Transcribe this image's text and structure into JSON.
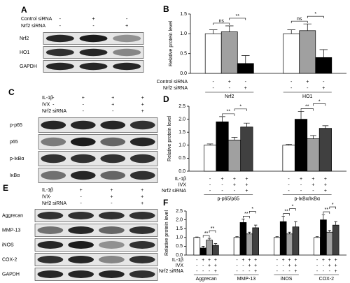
{
  "blots": [
    {
      "label": "A",
      "conditions": [
        {
          "name": "Control siRNA",
          "signs": [
            "-",
            "+",
            "-"
          ]
        },
        {
          "name": "Nrf2 siRNA",
          "signs": [
            "-",
            "-",
            "+"
          ]
        }
      ],
      "bands": [
        "Nrf2",
        "HO1",
        "GAPDH"
      ]
    },
    {
      "label": "C",
      "conditions": [
        {
          "name": "IL-1β",
          "signs": [
            "-",
            "+",
            "+",
            "+"
          ]
        },
        {
          "name": "IVX",
          "signs": [
            "-",
            "-",
            "+",
            "+"
          ]
        },
        {
          "name": "Nrf2 siRNA",
          "signs": [
            "-",
            "-",
            "-",
            "+"
          ]
        }
      ],
      "bands": [
        "p-p65",
        "p65",
        "p-IκBα",
        "IκBα"
      ]
    },
    {
      "label": "E",
      "conditions": [
        {
          "name": "IL-1β",
          "signs": [
            "-",
            "+",
            "+",
            "+"
          ]
        },
        {
          "name": "IVX",
          "signs": [
            "-",
            "-",
            "+",
            "+"
          ]
        },
        {
          "name": "Nrf2 siRNA",
          "signs": [
            "-",
            "-",
            "-",
            "+"
          ]
        }
      ],
      "bands": [
        "Aggrecan",
        "MMP-13",
        "iNOS",
        "COX-2",
        "GAPDH"
      ]
    }
  ],
  "chart_data": [
    {
      "type": "bar",
      "label": "B",
      "y_label": "Relative protein level",
      "categories": [
        "Nrf2",
        "HO1"
      ],
      "series": [
        {
          "color": "#ffffff",
          "values": [
            1.0,
            1.0
          ],
          "errors": [
            0.1,
            0.1
          ]
        },
        {
          "color": "#a0a0a0",
          "values": [
            1.05,
            1.08
          ],
          "errors": [
            0.15,
            0.17
          ]
        },
        {
          "color": "#000000",
          "values": [
            0.25,
            0.4
          ],
          "errors": [
            0.2,
            0.2
          ]
        }
      ],
      "conditions": [
        {
          "name": "Control siRNA",
          "signs": [
            "-",
            "+",
            "-"
          ]
        },
        {
          "name": "Nrf2 siRNA",
          "signs": [
            "-",
            "-",
            "+"
          ]
        }
      ],
      "significance": [
        [
          "ns",
          "**"
        ],
        [
          "ns",
          "*"
        ]
      ],
      "ylim": [
        0,
        1.5
      ],
      "yticks": [
        {
          "value": 0,
          "label": "0.0"
        },
        {
          "value": 0.5,
          "label": "0.5"
        },
        {
          "value": 1,
          "label": "1.0"
        },
        {
          "value": 1.5,
          "label": "1.5"
        }
      ]
    },
    {
      "type": "bar",
      "label": "D",
      "y_label": "Relative protein level",
      "categories": [
        "p-p65/p65",
        "p-IκBα/IκBα"
      ],
      "series": [
        {
          "color": "#ffffff",
          "values": [
            1.0,
            1.0
          ],
          "errors": [
            0.05,
            0.03
          ]
        },
        {
          "color": "#000000",
          "values": [
            1.9,
            2.0
          ],
          "errors": [
            0.2,
            0.3
          ]
        },
        {
          "color": "#a0a0a0",
          "values": [
            1.2,
            1.25
          ],
          "errors": [
            0.1,
            0.12
          ]
        },
        {
          "color": "#404040",
          "values": [
            1.7,
            1.65
          ],
          "errors": [
            0.15,
            0.1
          ]
        }
      ],
      "conditions": [
        {
          "name": "IL-1β",
          "signs": [
            "-",
            "+",
            "+",
            "+"
          ]
        },
        {
          "name": "IVX",
          "signs": [
            "-",
            "-",
            "+",
            "+"
          ]
        },
        {
          "name": "Nrf2 siRNA",
          "signs": [
            "-",
            "-",
            "-",
            "+"
          ]
        }
      ],
      "significance": [
        [
          "**",
          "*"
        ],
        [
          "**",
          "*"
        ]
      ],
      "ylim": [
        0,
        2.5
      ],
      "yticks": [
        {
          "value": 0,
          "label": "0.0"
        },
        {
          "value": 0.5,
          "label": "0.5"
        },
        {
          "value": 1,
          "label": "1.0"
        },
        {
          "value": 1.5,
          "label": "1.5"
        },
        {
          "value": 2,
          "label": "2.0"
        },
        {
          "value": 2.5,
          "label": "2.5"
        }
      ]
    },
    {
      "type": "bar",
      "label": "F",
      "y_label": "Relative protein level",
      "categories": [
        "Aggrecan",
        "MMP-13",
        "iNOS",
        "COX-2"
      ],
      "series": [
        {
          "color": "#ffffff",
          "values": [
            1.0,
            1.0,
            1.0,
            1.0
          ],
          "errors": [
            0.03,
            0.05,
            0.05,
            0.05
          ]
        },
        {
          "color": "#000000",
          "values": [
            0.4,
            1.85,
            1.9,
            2.0
          ],
          "errors": [
            0.1,
            0.2,
            0.3,
            0.3
          ]
        },
        {
          "color": "#a0a0a0",
          "values": [
            0.85,
            1.2,
            1.2,
            1.3
          ],
          "errors": [
            0.1,
            0.1,
            0.1,
            0.1
          ]
        },
        {
          "color": "#404040",
          "values": [
            0.55,
            1.55,
            1.6,
            1.7
          ],
          "errors": [
            0.1,
            0.15,
            0.3,
            0.2
          ]
        }
      ],
      "conditions": [
        {
          "name": "IL-1β",
          "signs": [
            "-",
            "+",
            "+",
            "+"
          ]
        },
        {
          "name": "IVX",
          "signs": [
            "-",
            "-",
            "+",
            "+"
          ]
        },
        {
          "name": "Nrf2 siRNA",
          "signs": [
            "-",
            "-",
            "-",
            "+"
          ]
        }
      ],
      "significance": [
        [
          "**",
          "**"
        ],
        [
          "**",
          "*"
        ],
        [
          "**",
          "*"
        ],
        [
          "**",
          "*"
        ]
      ],
      "ylim": [
        0,
        2.5
      ],
      "yticks": [
        {
          "value": 0,
          "label": "0.0"
        },
        {
          "value": 0.5,
          "label": "0.5"
        },
        {
          "value": 1,
          "label": "1.0"
        },
        {
          "value": 1.5,
          "label": "1.5"
        },
        {
          "value": 2,
          "label": "2.0"
        },
        {
          "value": 2.5,
          "label": "2.5"
        }
      ]
    }
  ]
}
